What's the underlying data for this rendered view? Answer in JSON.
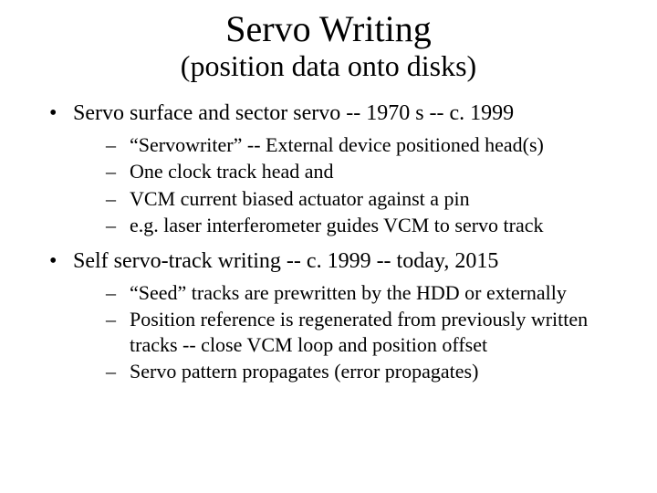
{
  "title": "Servo Writing",
  "subtitle": "(position data onto disks)",
  "bullets": [
    {
      "text": "Servo surface and sector servo -- 1970 s -- c. 1999",
      "sub": [
        "“Servowriter” -- External device positioned head(s)",
        "One clock track head and",
        "VCM current biased actuator against a pin",
        "e.g. laser interferometer guides VCM to servo track"
      ]
    },
    {
      "text": "Self servo-track writing -- c. 1999 -- today, 2015",
      "sub": [
        "“Seed” tracks are prewritten by the HDD or externally",
        "Position reference is regenerated from previously written tracks -- close VCM loop and position offset",
        "Servo pattern propagates (error propagates)"
      ]
    }
  ],
  "colors": {
    "background": "#ffffff",
    "text": "#000000"
  },
  "fonts": {
    "family": "Times New Roman",
    "title_size_pt": 40,
    "subtitle_size_pt": 32,
    "bullet_size_pt": 24,
    "sub_bullet_size_pt": 22
  }
}
